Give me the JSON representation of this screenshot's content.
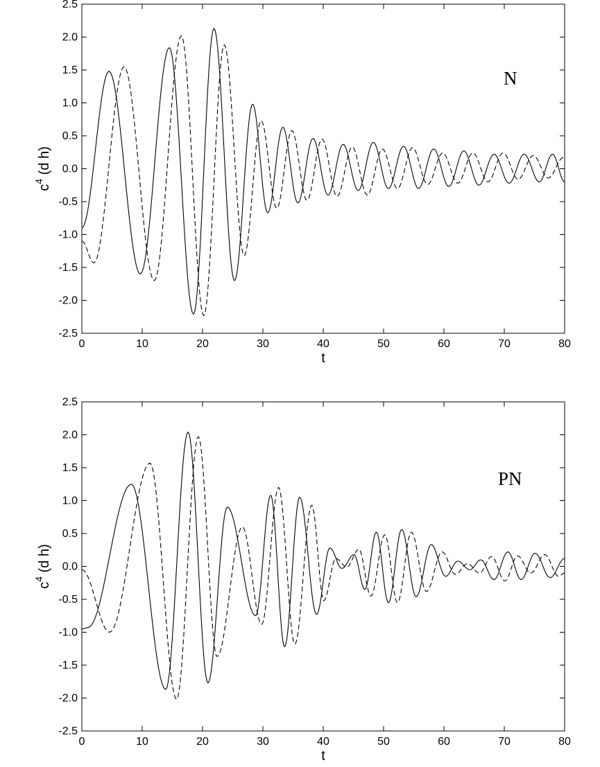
{
  "chart_data": [
    {
      "type": "line",
      "annotation": "N",
      "xlabel": "t",
      "ylabel_base": "c",
      "ylabel_sup": "4",
      "ylabel_rest": " (d h)",
      "xlim": [
        0,
        80
      ],
      "ylim": [
        -2.5,
        2.5
      ],
      "xticks": [
        "0",
        "10",
        "20",
        "30",
        "40",
        "50",
        "60",
        "70",
        "80"
      ],
      "yticks": [
        "-2.5",
        "-2.0",
        "-1.5",
        "-1.0",
        "-0.5",
        "0.0",
        "0.5",
        "1.0",
        "1.5",
        "2.0",
        "2.5"
      ],
      "grid": false,
      "series": [
        {
          "style": "solid",
          "extrema": [
            [
              0,
              -0.9
            ],
            [
              4.5,
              1.48
            ],
            [
              9.7,
              -1.6
            ],
            [
              14.5,
              1.84
            ],
            [
              18.5,
              -2.21
            ],
            [
              21.9,
              2.13
            ],
            [
              25.3,
              -1.7
            ],
            [
              28.3,
              0.98
            ],
            [
              30.8,
              -0.67
            ],
            [
              33.3,
              0.63
            ],
            [
              35.8,
              -0.52
            ],
            [
              38.3,
              0.46
            ],
            [
              40.8,
              -0.4
            ],
            [
              43.3,
              0.37
            ],
            [
              45.8,
              -0.33
            ],
            [
              48.3,
              0.4
            ],
            [
              50.8,
              -0.3
            ],
            [
              53.3,
              0.34
            ],
            [
              55.8,
              -0.3
            ],
            [
              58.3,
              0.3
            ],
            [
              60.8,
              -0.27
            ],
            [
              63.3,
              0.27
            ],
            [
              65.8,
              -0.25
            ],
            [
              68.3,
              0.22
            ],
            [
              70.8,
              -0.22
            ],
            [
              73.3,
              0.22
            ],
            [
              75.8,
              -0.2
            ],
            [
              78.0,
              0.22
            ],
            [
              80,
              -0.2
            ]
          ]
        },
        {
          "style": "dashed",
          "extrema": [
            [
              0,
              -1.1
            ],
            [
              2.0,
              -1.43
            ],
            [
              7.0,
              1.55
            ],
            [
              12.0,
              -1.7
            ],
            [
              16.5,
              2.02
            ],
            [
              20.2,
              -2.23
            ],
            [
              23.6,
              1.88
            ],
            [
              26.9,
              -1.32
            ],
            [
              29.7,
              0.73
            ],
            [
              32.3,
              -0.6
            ],
            [
              34.8,
              0.58
            ],
            [
              37.3,
              -0.48
            ],
            [
              39.8,
              0.45
            ],
            [
              42.3,
              -0.42
            ],
            [
              44.8,
              0.33
            ],
            [
              47.3,
              -0.4
            ],
            [
              49.8,
              0.3
            ],
            [
              52.3,
              -0.3
            ],
            [
              54.8,
              0.32
            ],
            [
              57.3,
              -0.24
            ],
            [
              59.8,
              0.24
            ],
            [
              62.3,
              -0.22
            ],
            [
              64.8,
              0.24
            ],
            [
              67.3,
              -0.2
            ],
            [
              69.8,
              0.24
            ],
            [
              72.3,
              -0.16
            ],
            [
              74.8,
              0.2
            ],
            [
              77.3,
              -0.14
            ],
            [
              79.8,
              0.17
            ]
          ]
        }
      ]
    },
    {
      "type": "line",
      "annotation": "PN",
      "xlabel": "t",
      "ylabel_base": "c",
      "ylabel_sup": "4",
      "ylabel_rest": " (d h)",
      "xlim": [
        0,
        80
      ],
      "ylim": [
        -2.5,
        2.5
      ],
      "xticks": [
        "0",
        "10",
        "20",
        "30",
        "40",
        "50",
        "60",
        "70",
        "80"
      ],
      "yticks": [
        "-2.5",
        "-2.0",
        "-1.5",
        "-1.0",
        "-0.5",
        "0.0",
        "0.5",
        "1.0",
        "1.5",
        "2.0",
        "2.5"
      ],
      "grid": false,
      "series": [
        {
          "style": "solid",
          "extrema": [
            [
              0,
              -0.95
            ],
            [
              1.0,
              -0.93
            ],
            [
              8.2,
              1.25
            ],
            [
              13.9,
              -1.87
            ],
            [
              17.6,
              2.04
            ],
            [
              20.9,
              -1.77
            ],
            [
              24.1,
              0.9
            ],
            [
              28.8,
              -0.75
            ],
            [
              31.3,
              1.08
            ],
            [
              33.6,
              -1.22
            ],
            [
              36.1,
              1.05
            ],
            [
              38.9,
              -0.73
            ],
            [
              41.1,
              0.28
            ],
            [
              43.1,
              -0.03
            ],
            [
              45.1,
              0.18
            ],
            [
              46.9,
              -0.35
            ],
            [
              48.8,
              0.52
            ],
            [
              50.8,
              -0.55
            ],
            [
              53.0,
              0.56
            ],
            [
              55.4,
              -0.46
            ],
            [
              57.9,
              0.33
            ],
            [
              60.3,
              -0.15
            ],
            [
              62.3,
              0.08
            ],
            [
              64.3,
              -0.05
            ],
            [
              66.1,
              0.1
            ],
            [
              68.3,
              -0.2
            ],
            [
              70.6,
              0.22
            ],
            [
              72.8,
              -0.2
            ],
            [
              75.1,
              0.2
            ],
            [
              77.6,
              -0.17
            ],
            [
              80,
              0.12
            ]
          ]
        },
        {
          "style": "dashed",
          "extrema": [
            [
              0,
              -0.05
            ],
            [
              4.6,
              -1.0
            ],
            [
              11.3,
              1.57
            ],
            [
              15.7,
              -2.02
            ],
            [
              19.3,
              1.97
            ],
            [
              22.4,
              -1.37
            ],
            [
              26.6,
              0.6
            ],
            [
              29.8,
              -0.88
            ],
            [
              32.6,
              1.2
            ],
            [
              35.3,
              -1.18
            ],
            [
              38.1,
              0.93
            ],
            [
              40.1,
              -0.52
            ],
            [
              42.1,
              0.12
            ],
            [
              43.9,
              -0.01
            ],
            [
              45.9,
              0.26
            ],
            [
              47.9,
              -0.45
            ],
            [
              50.2,
              0.48
            ],
            [
              52.3,
              -0.55
            ],
            [
              54.6,
              0.52
            ],
            [
              57.1,
              -0.38
            ],
            [
              59.7,
              0.22
            ],
            [
              61.9,
              -0.12
            ],
            [
              63.9,
              0.04
            ],
            [
              65.9,
              -0.1
            ],
            [
              67.9,
              0.15
            ],
            [
              70.1,
              -0.22
            ],
            [
              72.2,
              0.16
            ],
            [
              74.4,
              -0.1
            ],
            [
              76.7,
              0.18
            ],
            [
              79.0,
              -0.15
            ],
            [
              80,
              -0.1
            ]
          ]
        }
      ]
    }
  ]
}
